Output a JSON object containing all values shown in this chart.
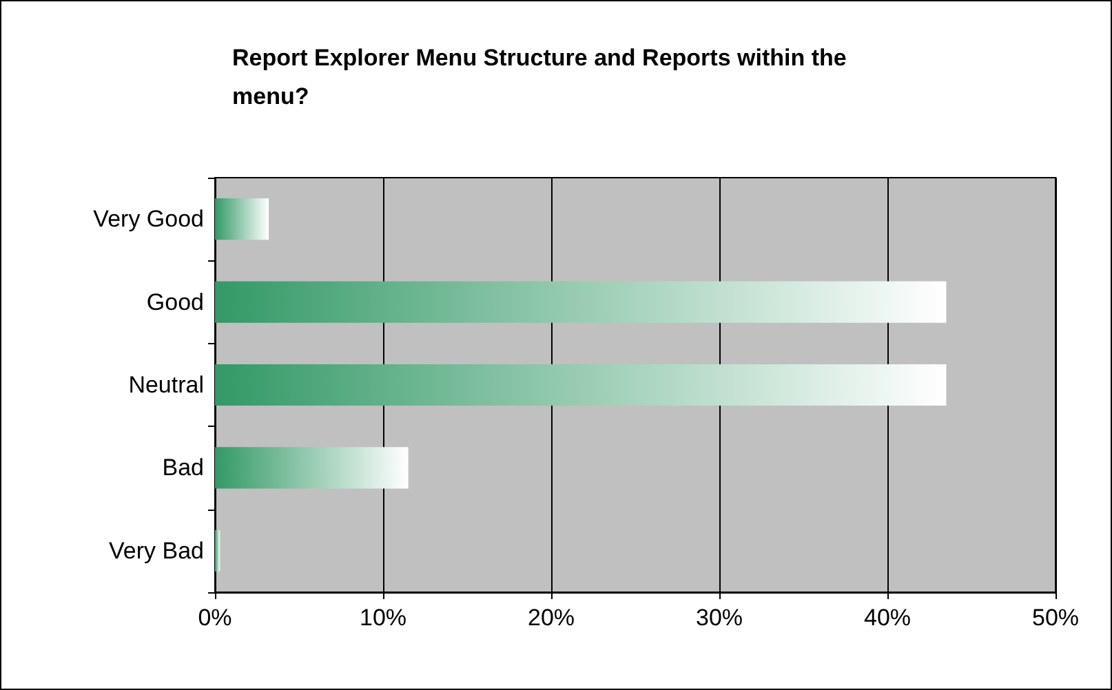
{
  "chart_data": {
    "type": "bar",
    "orientation": "horizontal",
    "title": "Report Explorer Menu Structure and Reports within the menu?",
    "categories": [
      "Very Good",
      "Good",
      "Neutral",
      "Bad",
      "Very Bad"
    ],
    "values": [
      3.2,
      43.5,
      43.5,
      11.5,
      0.3
    ],
    "color": "#339966",
    "xlim": [
      0,
      50
    ],
    "xticks": [
      {
        "value": 0,
        "label": "0%"
      },
      {
        "value": 10,
        "label": "10%"
      },
      {
        "value": 20,
        "label": "20%"
      },
      {
        "value": 30,
        "label": "30%"
      },
      {
        "value": 40,
        "label": "40%"
      },
      {
        "value": 50,
        "label": "50%"
      }
    ],
    "grid": "x"
  }
}
